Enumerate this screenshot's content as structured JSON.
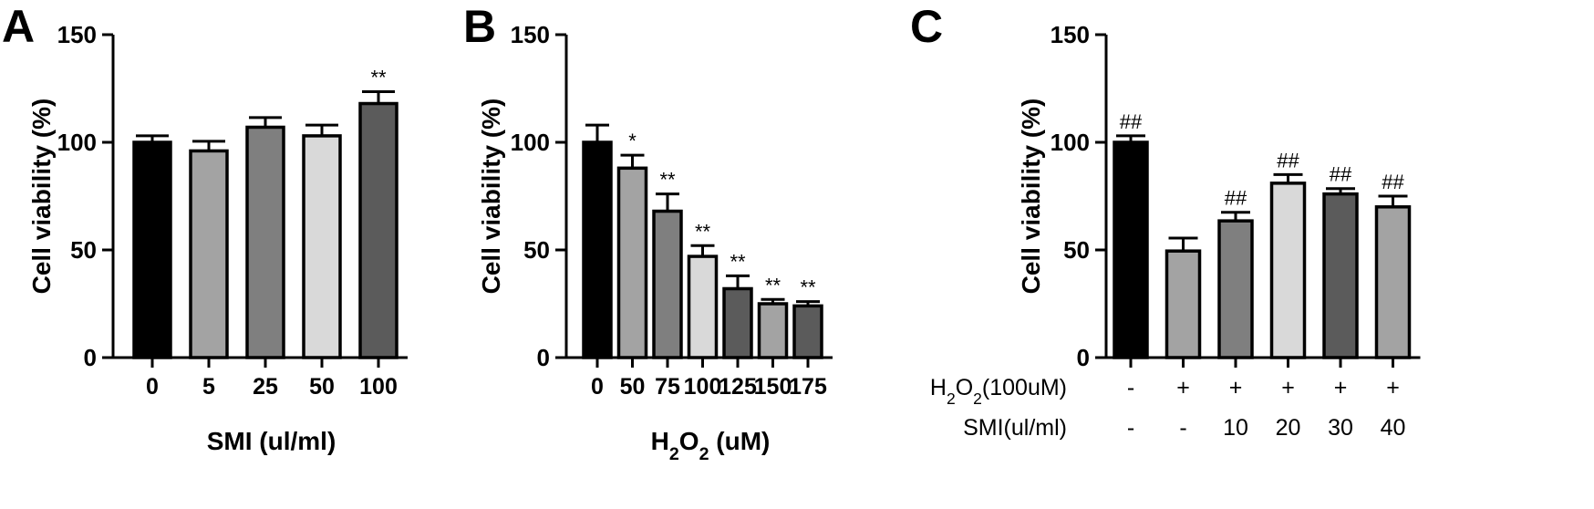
{
  "chart_data": [
    {
      "type": "bar",
      "panel": "A",
      "ylabel": "Cell viability (%)",
      "xlabel": "SMI (ul/ml)",
      "xlabel_parts": [
        {
          "t": "SMI (ul/ml)"
        }
      ],
      "ylim": [
        0,
        150
      ],
      "yticks": [
        0,
        50,
        100,
        150
      ],
      "categories": [
        "0",
        "5",
        "25",
        "50",
        "100"
      ],
      "values": [
        100,
        96,
        107,
        103,
        118
      ],
      "errors": [
        3,
        4.5,
        4.5,
        5,
        5.5
      ],
      "fills": [
        "#000000",
        "#a3a3a3",
        "#7f7f7f",
        "#d9d9d9",
        "#5b5b5b"
      ],
      "significance": [
        "",
        "",
        "",
        "",
        "**"
      ]
    },
    {
      "type": "bar",
      "panel": "B",
      "ylabel": "Cell viability (%)",
      "xlabel": "H2O2 (uM)",
      "xlabel_parts": [
        {
          "t": "H"
        },
        {
          "t": "2",
          "sub": true
        },
        {
          "t": "O"
        },
        {
          "t": "2",
          "sub": true
        },
        {
          "t": " (uM)"
        }
      ],
      "ylim": [
        0,
        150
      ],
      "yticks": [
        0,
        50,
        100,
        150
      ],
      "categories": [
        "0",
        "50",
        "75",
        "100",
        "125",
        "150",
        "175"
      ],
      "values": [
        100,
        88,
        68,
        47,
        32,
        25,
        24
      ],
      "errors": [
        8,
        6,
        8,
        5,
        6,
        2,
        2
      ],
      "fills": [
        "#000000",
        "#a3a3a3",
        "#7f7f7f",
        "#d9d9d9",
        "#5b5b5b",
        "#a3a3a3",
        "#5b5b5b"
      ],
      "significance": [
        "",
        "*",
        "**",
        "**",
        "**",
        "**",
        "**"
      ]
    },
    {
      "type": "bar",
      "panel": "C",
      "ylabel": "Cell viability (%)",
      "ylim": [
        0,
        150
      ],
      "yticks": [
        0,
        50,
        100,
        150
      ],
      "values": [
        100,
        49.5,
        63.5,
        81,
        76,
        70
      ],
      "errors": [
        3,
        6,
        4,
        4,
        2.5,
        5
      ],
      "fills": [
        "#000000",
        "#a3a3a3",
        "#7f7f7f",
        "#d9d9d9",
        "#5b5b5b",
        "#a3a3a3"
      ],
      "significance": [
        "##",
        "",
        "##",
        "##",
        "##",
        "##"
      ],
      "condition_rows": [
        {
          "label": "H2O2(100uM)",
          "label_parts": [
            {
              "t": "H"
            },
            {
              "t": "2",
              "sub": true
            },
            {
              "t": "O"
            },
            {
              "t": "2",
              "sub": true
            },
            {
              "t": "(100uM)"
            }
          ],
          "values": [
            "-",
            "+",
            "+",
            "+",
            "+",
            "+"
          ]
        },
        {
          "label": "SMI(ul/ml)",
          "label_parts": [
            {
              "t": "SMI(ul/ml)"
            }
          ],
          "values": [
            "-",
            "-",
            "10",
            "20",
            "30",
            "40"
          ]
        }
      ]
    }
  ]
}
